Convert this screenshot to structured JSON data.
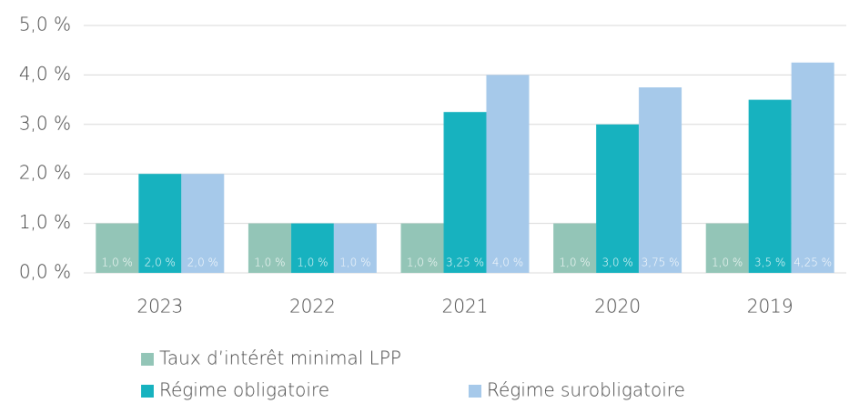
{
  "chart_data": {
    "type": "bar",
    "categories": [
      "2023",
      "2022",
      "2021",
      "2020",
      "2019"
    ],
    "series": [
      {
        "name": "Taux d’intérêt minimal LPP",
        "color": "#93c5b7",
        "values": [
          1.0,
          1.0,
          1.0,
          1.0,
          1.0
        ],
        "value_labels": [
          "1,0 %",
          "1,0 %",
          "1,0 %",
          "1,0 %",
          "1,0 %"
        ]
      },
      {
        "name": "Régime obligatoire",
        "color": "#17b2bf",
        "values": [
          2.0,
          1.0,
          3.25,
          3.0,
          3.5
        ],
        "value_labels": [
          "2,0 %",
          "1,0 %",
          "3,25 %",
          "3,0 %",
          "3,5 %"
        ]
      },
      {
        "name": "Régime surobligatoire",
        "color": "#a6c9ea",
        "values": [
          2.0,
          1.0,
          4.0,
          3.75,
          4.25
        ],
        "value_labels": [
          "2,0 %",
          "1,0 %",
          "4,0 %",
          "3,75 %",
          "4,25 %"
        ]
      }
    ],
    "ylim": [
      0,
      5
    ],
    "yticks": [
      {
        "value": 0,
        "label": "0,0 %"
      },
      {
        "value": 1,
        "label": "1,0 %"
      },
      {
        "value": 2,
        "label": "2,0 %"
      },
      {
        "value": 3,
        "label": "3,0 %"
      },
      {
        "value": 4,
        "label": "4,0 %"
      },
      {
        "value": 5,
        "label": "5,0 %"
      }
    ],
    "grid": true
  }
}
